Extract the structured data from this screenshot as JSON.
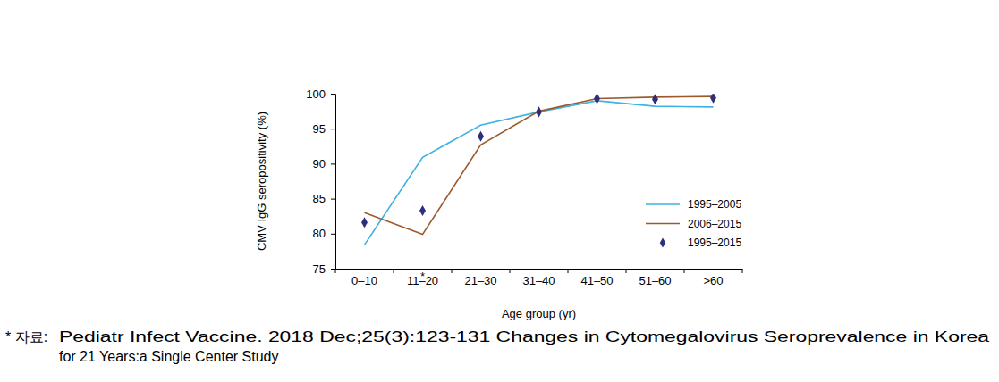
{
  "chart_data": {
    "type": "line",
    "x_label": "Age group (yr)",
    "y_label": "CMV IgG seropositivity (%)",
    "categories": [
      "0–10",
      "11–20",
      "21–30",
      "31–40",
      "41–50",
      "51–60",
      ">60"
    ],
    "series": [
      {
        "name": "1995–2005",
        "type": "line",
        "color": "#3fb1e3",
        "line_style": "solid",
        "values": [
          78.4,
          90.9,
          95.5,
          97.4,
          99.0,
          98.2,
          98.1
        ]
      },
      {
        "name": "2006–2015",
        "type": "line",
        "color": "#9c5a2c",
        "line_style": "solid",
        "values": [
          83.0,
          79.9,
          92.7,
          97.5,
          99.3,
          99.5,
          99.6
        ]
      },
      {
        "name": "1995–2015",
        "type": "scatter",
        "color": "#2e2f7c",
        "marker": "diamond",
        "values": [
          81.6,
          83.3,
          93.9,
          97.4,
          99.3,
          99.2,
          99.4
        ]
      }
    ],
    "ylim": [
      75,
      100
    ],
    "yticks": [
      75,
      80,
      85,
      90,
      95,
      100
    ],
    "grid": false,
    "legend": "lower right",
    "annotations": [
      {
        "text": "*",
        "category": 1
      }
    ],
    "source_label": "* 자료:",
    "source_lines": [
      "Pediatr Infect Vaccine. 2018 Dec;25(3):123-131 Changes in Cytomegalovirus Seroprevalence in Korea",
      "for 21 Years:a Single Center Study"
    ]
  }
}
